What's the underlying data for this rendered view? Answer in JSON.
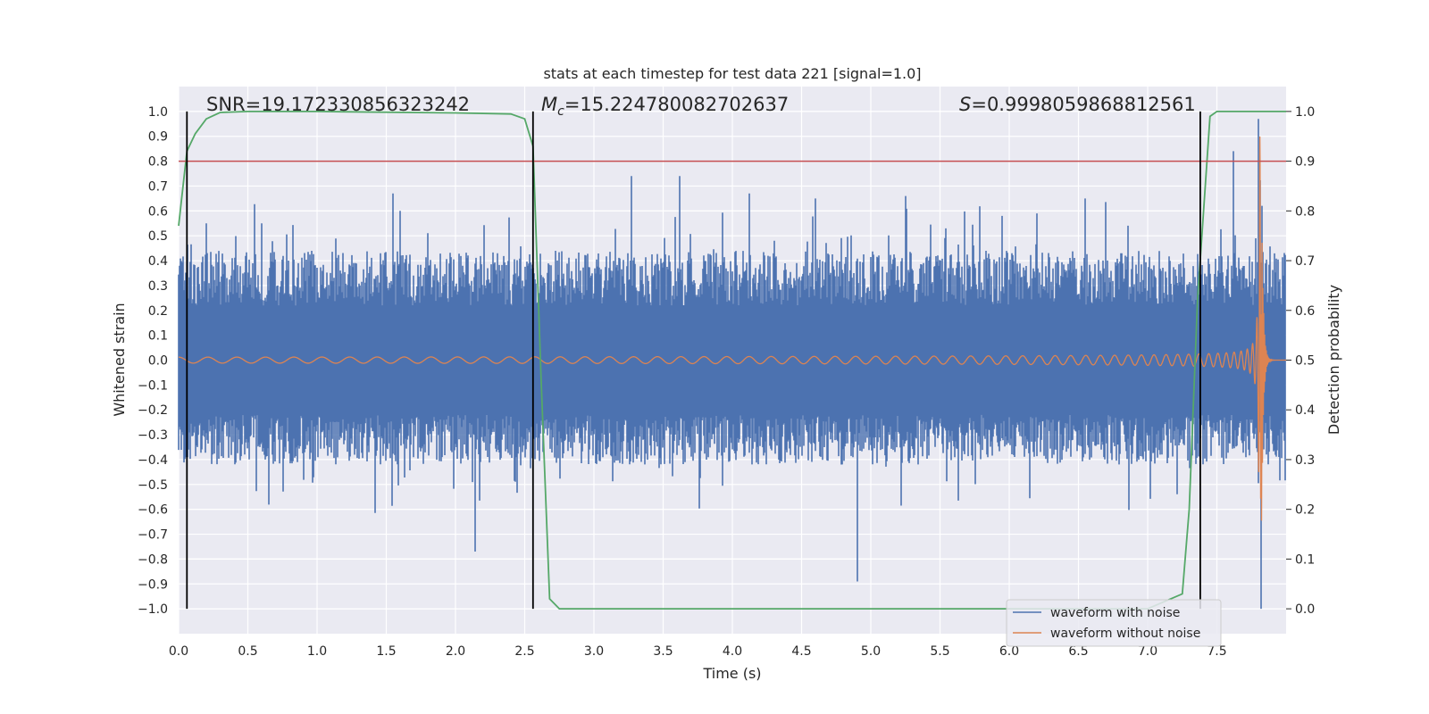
{
  "chart_data": {
    "type": "line",
    "title": "stats at each timestep for test data 221 [signal=1.0]",
    "xlabel": "Time (s)",
    "ylabel": "Whitened strain",
    "y2label": "Detection probability",
    "xlim": [
      0.0,
      8.0
    ],
    "ylim": [
      -1.1,
      1.1
    ],
    "y2lim": [
      -0.05,
      1.05
    ],
    "x_ticks": [
      "0.0",
      "0.5",
      "1.0",
      "1.5",
      "2.0",
      "2.5",
      "3.0",
      "3.5",
      "4.0",
      "4.5",
      "5.0",
      "5.5",
      "6.0",
      "6.5",
      "7.0",
      "7.5"
    ],
    "y_ticks": [
      "1.0",
      "0.9",
      "0.8",
      "0.7",
      "0.6",
      "0.5",
      "0.4",
      "0.3",
      "0.2",
      "0.1",
      "0.0",
      "−0.1",
      "−0.2",
      "−0.3",
      "−0.4",
      "−0.5",
      "−0.6",
      "−0.7",
      "−0.8",
      "−0.9",
      "−1.0"
    ],
    "y2_ticks": [
      "1.0",
      "0.9",
      "0.8",
      "0.7",
      "0.6",
      "0.5",
      "0.4",
      "0.3",
      "0.2",
      "0.1",
      "0.0"
    ],
    "annotations": {
      "snr": "SNR=19.172330856323242",
      "mc_symbol": "M",
      "mc_sub": "c",
      "mc_value": "=15.224780082702637",
      "s_symbol": "S",
      "s_value": "=0.9998059868812561"
    },
    "threshold_y2": 0.9,
    "vertical_lines_x": [
      0.06,
      2.56,
      7.38
    ],
    "series": [
      {
        "name": "waveform with noise",
        "color": "#4c72b0",
        "summary": "white-noise band roughly ±0.35 with spikes to about 0.67 (x≈1.55) and down to −0.77 (x≈2.14), −0.89 (x≈4.9); grows with the chirp near 7.6–7.85 up to 0.97 and down to −1.0 at x≈7.82",
        "spikes": [
          [
            0.2,
            0.55
          ],
          [
            0.6,
            0.55
          ],
          [
            1.55,
            0.67
          ],
          [
            1.6,
            0.6
          ],
          [
            2.14,
            -0.77
          ],
          [
            3.27,
            0.74
          ],
          [
            3.62,
            0.74
          ],
          [
            4.12,
            0.67
          ],
          [
            4.6,
            0.65
          ],
          [
            4.9,
            -0.89
          ],
          [
            5.25,
            0.66
          ],
          [
            5.95,
            0.58
          ],
          [
            6.2,
            0.59
          ],
          [
            6.55,
            0.65
          ],
          [
            7.62,
            0.84
          ],
          [
            7.8,
            0.97
          ],
          [
            7.82,
            -1.0
          ]
        ]
      },
      {
        "name": "waveform without noise",
        "color": "#dd8452",
        "summary": "gravitational-wave chirp: amplitude about 0.01 early, frequency and amplitude rising toward merger at x≈7.82 (peak about 0.9), then ringdown to 0",
        "merger_time": 7.82,
        "amp_start": 0.012,
        "amp_peak": 0.9
      },
      {
        "name": "detection probability",
        "color": "#55a868",
        "axis": "right",
        "x": [
          0.0,
          0.06,
          0.12,
          0.2,
          0.3,
          0.5,
          1.0,
          2.0,
          2.4,
          2.5,
          2.56,
          2.62,
          2.68,
          2.75,
          3.0,
          5.0,
          7.0,
          7.25,
          7.3,
          7.36,
          7.45,
          7.5,
          7.6,
          7.8,
          8.0
        ],
        "y": [
          0.77,
          0.92,
          0.955,
          0.985,
          0.998,
          1.0,
          1.0,
          0.997,
          0.995,
          0.985,
          0.93,
          0.45,
          0.02,
          0.0,
          0.0,
          0.0,
          0.0,
          0.03,
          0.2,
          0.62,
          0.99,
          1.0,
          1.0,
          1.0,
          1.0
        ]
      }
    ],
    "colors": {
      "plot_bg": "#eaeaf2",
      "grid": "#ffffff",
      "threshold": "#c44e52",
      "vline": "#000000",
      "noise": "#4c72b0",
      "clean": "#dd8452",
      "prob": "#55a868"
    },
    "legend": {
      "placement": "lower-right",
      "items": [
        "waveform with noise",
        "waveform without noise"
      ]
    }
  }
}
